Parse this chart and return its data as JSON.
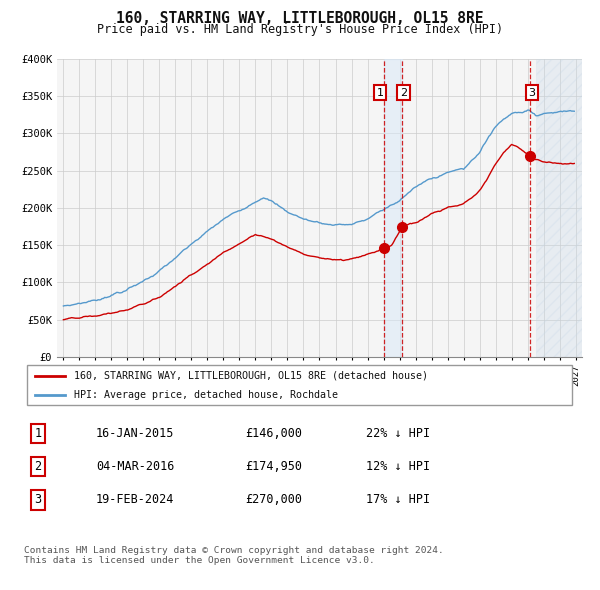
{
  "title": "160, STARRING WAY, LITTLEBOROUGH, OL15 8RE",
  "subtitle": "Price paid vs. HM Land Registry's House Price Index (HPI)",
  "y_ticks": [
    0,
    50000,
    100000,
    150000,
    200000,
    250000,
    300000,
    350000,
    400000
  ],
  "y_tick_labels": [
    "£0",
    "£50K",
    "£100K",
    "£150K",
    "£200K",
    "£250K",
    "£300K",
    "£350K",
    "£400K"
  ],
  "sale_dates_num": [
    2015.04,
    2016.17,
    2024.13
  ],
  "sale_prices": [
    146000,
    174950,
    270000
  ],
  "sale_labels": [
    "1",
    "2",
    "3"
  ],
  "legend_red": "160, STARRING WAY, LITTLEBOROUGH, OL15 8RE (detached house)",
  "legend_blue": "HPI: Average price, detached house, Rochdale",
  "table_rows": [
    {
      "num": "1",
      "date": "16-JAN-2015",
      "price": "£146,000",
      "hpi": "22% ↓ HPI"
    },
    {
      "num": "2",
      "date": "04-MAR-2016",
      "price": "£174,950",
      "hpi": "12% ↓ HPI"
    },
    {
      "num": "3",
      "date": "19-FEB-2024",
      "price": "£270,000",
      "hpi": "17% ↓ HPI"
    }
  ],
  "footer": "Contains HM Land Registry data © Crown copyright and database right 2024.\nThis data is licensed under the Open Government Licence v3.0.",
  "red_color": "#cc0000",
  "blue_color": "#5599cc",
  "bg_color": "#ffffff",
  "grid_color": "#cccccc",
  "shade_color": "#d8e8f8"
}
